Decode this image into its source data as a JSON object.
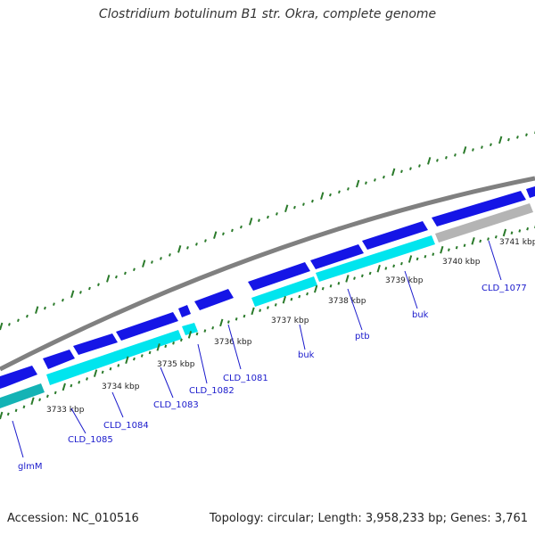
{
  "title": "Clostridium botulinum B1 str. Okra, complete genome",
  "footer": {
    "accession": "Accession: NC_010516",
    "summary": "Topology: circular; Length: 3,958,233 bp; Genes: 3,761"
  },
  "colors": {
    "forward_gene": "#1515e6",
    "reverse_gene": "#00e5ee",
    "reverse_gene_dark": "#14b3b5",
    "pseudo_gene": "#b4b4b4",
    "backbone": "#808080",
    "tick": "#2a7a2a",
    "label": "#1a1acc"
  },
  "kbp_labels": [
    "3733 kbp",
    "3734 kbp",
    "3735 kbp",
    "3736 kbp",
    "3737 kbp",
    "3738 kbp",
    "3739 kbp",
    "3740 kbp",
    "3741 kbp"
  ],
  "gene_labels": [
    "glmM",
    "CLD_1085",
    "CLD_1084",
    "CLD_1083",
    "CLD_1082",
    "CLD_1081",
    "buk",
    "ptb",
    "buk",
    "CLD_1077"
  ],
  "icons": {
    "forward_gene": "arrow-right-shape",
    "reverse_gene": "bar-shape"
  }
}
